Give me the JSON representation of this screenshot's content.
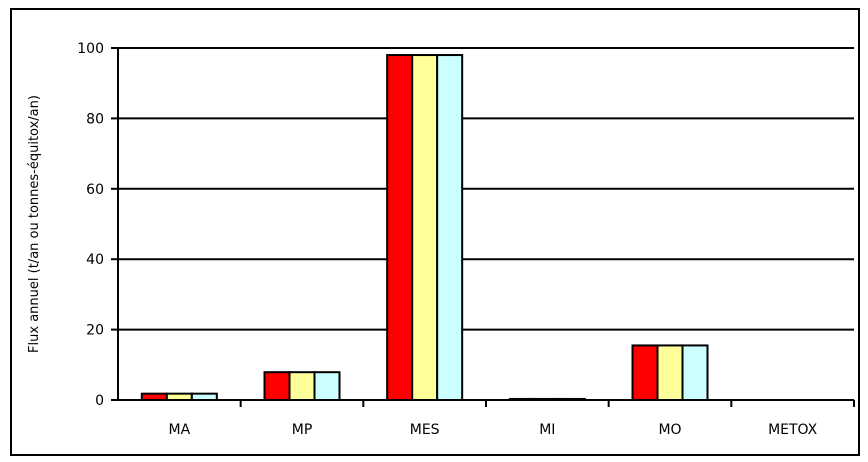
{
  "chart_data": {
    "type": "bar",
    "title": "",
    "xlabel": "",
    "ylabel": "Flux annuel (t/an ou tonnes-équitox/an)",
    "ylim": [
      0,
      100
    ],
    "yticks": [
      0,
      20,
      40,
      60,
      80,
      100
    ],
    "grid": true,
    "legend": "none",
    "categories": [
      "MA",
      "MP",
      "MES",
      "MI",
      "MO",
      "METOX"
    ],
    "series": [
      {
        "values": [
          1.8,
          7.9,
          98,
          0.3,
          15.5,
          0
        ],
        "color": "#ff0000"
      },
      {
        "values": [
          1.8,
          7.9,
          98,
          0.3,
          15.5,
          0
        ],
        "color": "#ffff99"
      },
      {
        "values": [
          1.8,
          7.9,
          98,
          0.3,
          15.5,
          0
        ],
        "color": "#ccffff"
      }
    ]
  }
}
